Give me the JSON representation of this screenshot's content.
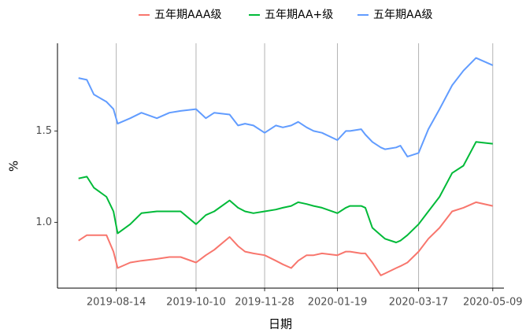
{
  "chart_data": {
    "type": "line",
    "x_label": "日期",
    "y_label": "%",
    "x": [
      "2019-07-18",
      "2019-07-24",
      "2019-07-29",
      "2019-08-07",
      "2019-08-12",
      "2019-08-15",
      "2019-08-24",
      "2019-09-01",
      "2019-09-12",
      "2019-09-21",
      "2019-09-29",
      "2019-10-10",
      "2019-10-17",
      "2019-10-23",
      "2019-11-03",
      "2019-11-09",
      "2019-11-14",
      "2019-11-20",
      "2019-11-28",
      "2019-12-06",
      "2019-12-11",
      "2019-12-17",
      "2019-12-22",
      "2019-12-28",
      "2020-01-02",
      "2020-01-08",
      "2020-01-19",
      "2020-01-25",
      "2020-01-28",
      "2020-02-05",
      "2020-02-08",
      "2020-02-13",
      "2020-02-19",
      "2020-02-22",
      "2020-03-01",
      "2020-03-04",
      "2020-03-09",
      "2020-03-17",
      "2020-03-24",
      "2020-04-01",
      "2020-04-10",
      "2020-04-18",
      "2020-04-27",
      "2020-05-09"
    ],
    "series": [
      {
        "name": "五年期AAA级",
        "color": "#F8766D",
        "values": [
          0.9,
          0.93,
          0.93,
          0.93,
          0.84,
          0.75,
          0.78,
          0.79,
          0.8,
          0.81,
          0.81,
          0.78,
          0.82,
          0.85,
          0.92,
          0.87,
          0.84,
          0.83,
          0.82,
          0.79,
          0.77,
          0.75,
          0.79,
          0.82,
          0.82,
          0.83,
          0.82,
          0.84,
          0.84,
          0.83,
          0.83,
          0.78,
          0.71,
          0.72,
          0.75,
          0.76,
          0.78,
          0.84,
          0.91,
          0.97,
          1.06,
          1.08,
          1.11,
          1.09
        ]
      },
      {
        "name": "五年期AA+级",
        "color": "#00BA38",
        "values": [
          1.24,
          1.25,
          1.19,
          1.14,
          1.06,
          0.94,
          0.99,
          1.05,
          1.06,
          1.06,
          1.06,
          0.99,
          1.04,
          1.06,
          1.12,
          1.08,
          1.06,
          1.05,
          1.06,
          1.07,
          1.08,
          1.09,
          1.11,
          1.1,
          1.09,
          1.08,
          1.05,
          1.08,
          1.09,
          1.09,
          1.08,
          0.97,
          0.93,
          0.91,
          0.89,
          0.9,
          0.93,
          0.99,
          1.06,
          1.14,
          1.27,
          1.31,
          1.44,
          1.43
        ]
      },
      {
        "name": "五年期AA级",
        "color": "#619CFF",
        "values": [
          1.79,
          1.78,
          1.7,
          1.66,
          1.62,
          1.54,
          1.57,
          1.6,
          1.57,
          1.6,
          1.61,
          1.62,
          1.57,
          1.6,
          1.59,
          1.53,
          1.54,
          1.53,
          1.49,
          1.53,
          1.52,
          1.53,
          1.55,
          1.52,
          1.5,
          1.49,
          1.45,
          1.5,
          1.5,
          1.51,
          1.48,
          1.44,
          1.41,
          1.4,
          1.41,
          1.42,
          1.36,
          1.38,
          1.51,
          1.62,
          1.75,
          1.83,
          1.9,
          1.86
        ]
      }
    ],
    "xlim": [
      "2019-07-03",
      "2020-05-17"
    ],
    "xticks": [
      "2019-08-14",
      "2019-10-10",
      "2019-11-28",
      "2020-01-19",
      "2020-03-17",
      "2020-05-09"
    ],
    "ylim": [
      0.64,
      1.98
    ],
    "yticks": [
      {
        "value": 1.0,
        "label": "1.0"
      },
      {
        "value": 1.5,
        "label": "1.5"
      }
    ],
    "grid": "x",
    "legend": "top"
  }
}
